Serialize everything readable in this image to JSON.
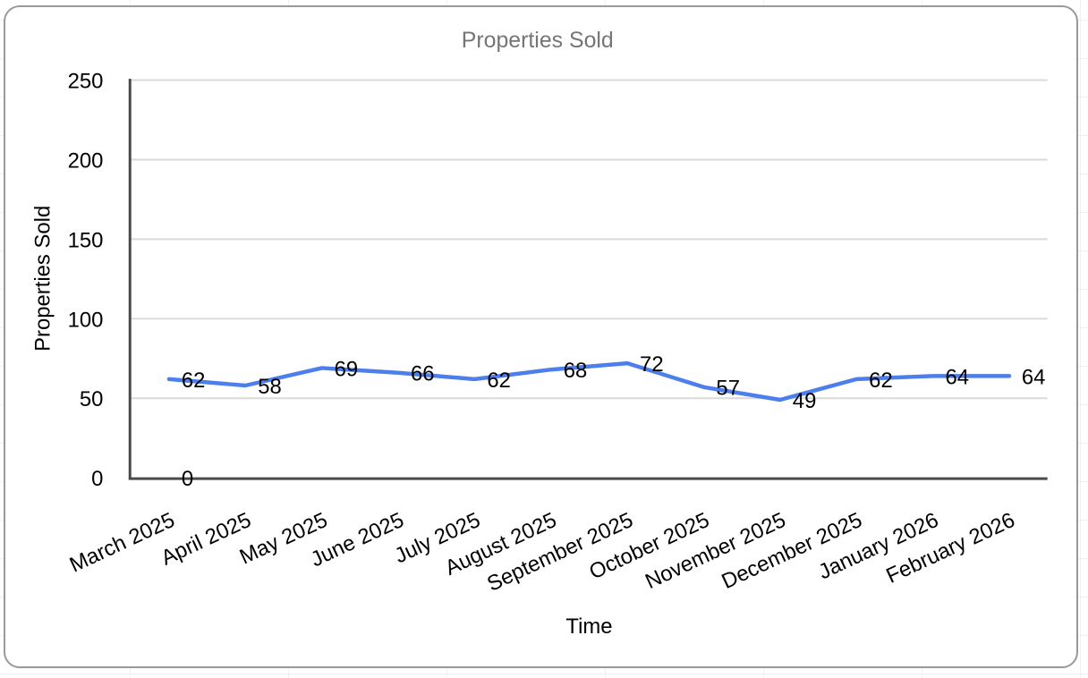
{
  "chart_data": {
    "type": "line",
    "title": "Properties Sold",
    "xlabel": "Time",
    "ylabel": "Properties Sold",
    "categories": [
      "March 2025",
      "April 2025",
      "May 2025",
      "June 2025",
      "July 2025",
      "August 2025",
      "September 2025",
      "October 2025",
      "November 2025",
      "December 2025",
      "January 2026",
      "February 2026"
    ],
    "series": [
      {
        "name": "Properties Sold",
        "color": "#4c7fec",
        "values": [
          62,
          58,
          69,
          66,
          62,
          68,
          72,
          57,
          49,
          62,
          64,
          64
        ]
      },
      {
        "name": "",
        "color": "#4c7fec",
        "values": [
          0,
          null,
          null,
          null,
          null,
          null,
          null,
          null,
          null,
          null,
          null,
          null
        ]
      }
    ],
    "ylim": [
      0,
      250
    ],
    "yticks": [
      0,
      50,
      100,
      150,
      200,
      250
    ],
    "grid": true,
    "legend_position": "none",
    "data_labels": true,
    "x_label_rotation_deg": -25
  },
  "colors": {
    "line": "#4c7fec",
    "title_text": "#757575",
    "axis_line": "#4a4a4a",
    "gridline": "#d9d9d9",
    "label_text": "#000000",
    "card_border": "#999999",
    "card_background": "#ffffff",
    "sheet_gridline": "#eef1f2"
  }
}
